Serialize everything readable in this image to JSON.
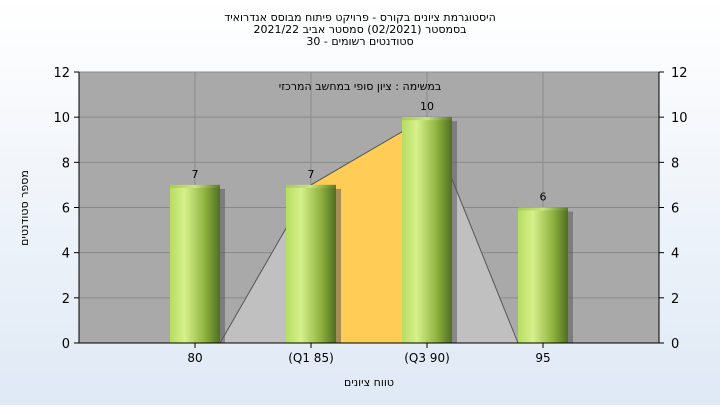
{
  "chart_data": {
    "type": "bar",
    "title_lines": [
      "היסטוגרמת ציונים בקורס - פרויקט פיתוח מבוסס אנדרואיד",
      "בסמסטר  (02/2021)  סמסטר אביב 2021/22",
      "סטודנטים רשומים - 30"
    ],
    "subtitle": "במשימה : ציון סופי במחשב המרכזי",
    "categories": [
      "80",
      "(Q1 85)",
      "(Q3 90)",
      "95"
    ],
    "values": [
      7,
      7,
      10,
      6
    ],
    "xlabel": "טווח ציונים",
    "ylabel": "מספר סטודנטים",
    "ylim": [
      0,
      12
    ],
    "yticks": [
      0,
      2,
      4,
      6,
      8,
      10,
      12
    ],
    "grid": true,
    "legend": "none",
    "colors": {
      "plot_background": "#a9a9a9",
      "area_outer": "#c0c0c0",
      "area_iqr": "#ffcc55",
      "bar_light": "#d6f08c",
      "bar_dark": "#4f6e22"
    }
  }
}
